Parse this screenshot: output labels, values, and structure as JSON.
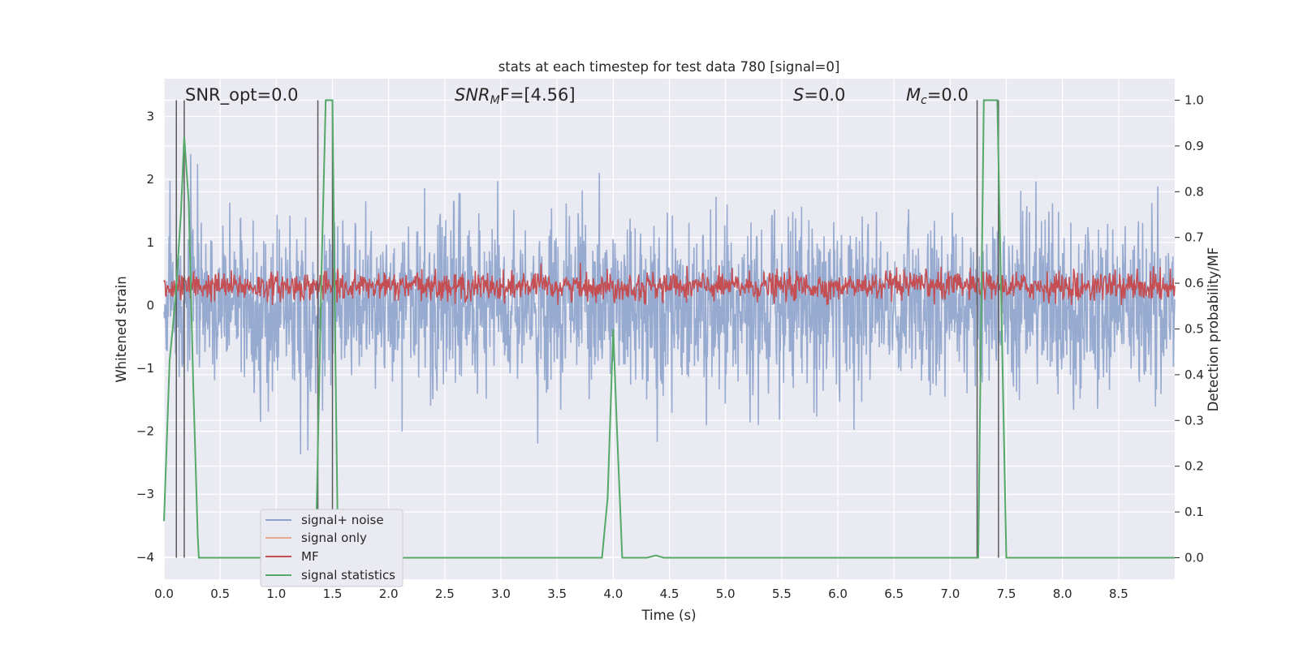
{
  "chart_data": {
    "type": "line",
    "title": "stats at each timestep for test data 780 [signal=0]",
    "xlabel": "Time (s)",
    "ylabel": "Whitened strain",
    "ylabel_right": "Detection probability/MF",
    "xlim": [
      0.0,
      9.0
    ],
    "ylim": [
      -4.35,
      3.6
    ],
    "ylim_right": [
      -0.047,
      1.047
    ],
    "xticks": [
      "0.0",
      "0.5",
      "1.0",
      "1.5",
      "2.0",
      "2.5",
      "3.0",
      "3.5",
      "4.0",
      "4.5",
      "5.0",
      "5.5",
      "6.0",
      "6.5",
      "7.0",
      "7.5",
      "8.0",
      "8.5"
    ],
    "yticks": [
      "3",
      "2",
      "1",
      "0",
      "−1",
      "−2",
      "−3",
      "−4"
    ],
    "yticks_right": [
      "1.0",
      "0.9",
      "0.8",
      "0.7",
      "0.6",
      "0.5",
      "0.4",
      "0.3",
      "0.2",
      "0.1",
      "0.0"
    ],
    "grid": true,
    "legend_position": "lower-left",
    "annotations": [
      {
        "label": "SNR_opt=0.0"
      },
      {
        "label": "SNR",
        "sub": "M",
        "suffix": "F=[4.56]"
      },
      {
        "label": "S",
        "suffix": "=0.0"
      },
      {
        "label": "M",
        "sub": "c",
        "suffix": "=0.0"
      }
    ],
    "series": [
      {
        "name": "signal+ noise",
        "color": "#8ea3cc",
        "noise_std": 0.7,
        "duration": 9.0,
        "note_values": "random noise"
      },
      {
        "name": "signal only",
        "color": "#e8a88e",
        "values": [
          0
        ]
      },
      {
        "name": "MF",
        "color": "#c44e52",
        "mean": 0.3,
        "amplitude": 0.25
      },
      {
        "name": "signal statistics",
        "color": "#55a868",
        "x": [
          0.0,
          0.05,
          0.1,
          0.15,
          0.18,
          0.22,
          0.26,
          0.3,
          0.31,
          1.3,
          1.35,
          1.4,
          1.44,
          1.5,
          1.52,
          1.55,
          3.9,
          3.95,
          4.0,
          4.03,
          4.08,
          4.3,
          4.38,
          4.45,
          7.25,
          7.3,
          7.42,
          7.5,
          9.0
        ],
        "values": [
          0.08,
          0.43,
          0.56,
          0.75,
          0.92,
          0.78,
          0.38,
          0.05,
          0.0,
          0.0,
          0.0,
          0.6,
          1.0,
          1.0,
          0.55,
          0.0,
          0.0,
          0.13,
          0.5,
          0.3,
          0.0,
          0.0,
          0.005,
          0.0,
          0.0,
          1.0,
          1.0,
          0.0,
          0.0
        ]
      }
    ],
    "vertical_lines": [
      0.11,
      0.18,
      1.37,
      1.5,
      7.24,
      7.43
    ]
  },
  "colors": {
    "plot_background": "#eaeaf2",
    "grid": "#ffffff",
    "text": "#262626",
    "vline": "#5a5a5a"
  }
}
